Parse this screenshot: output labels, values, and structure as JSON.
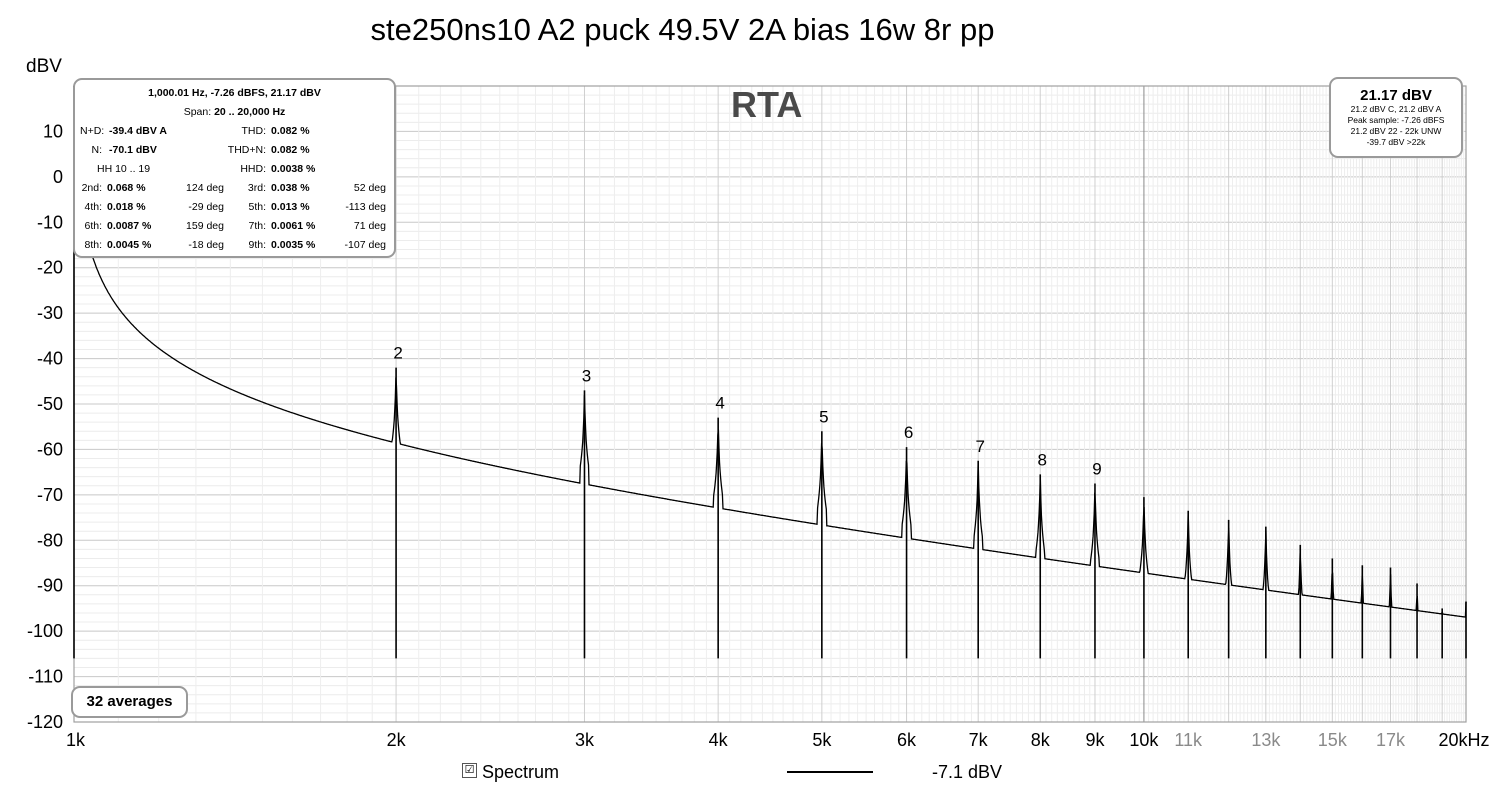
{
  "title": "ste250ns10 A2 puck 49.5V 2A bias 16w 8r pp",
  "rta_label": "RTA",
  "stats": {
    "header1": "1,000.01 Hz, -7.26 dBFS, 21.17 dBV",
    "header2_label": "Span:",
    "header2_value": "20 .. 20,000 Hz",
    "nd_label": "N+D:",
    "nd_value": "-39.4 dBV A",
    "thd_label": "THD:",
    "thd_value": "0.082 %",
    "n_label": "N:",
    "n_value": "-70.1 dBV",
    "thdn_label": "THD+N:",
    "thdn_value": "0.082 %",
    "hh_label": "HH 10 .. 19",
    "hhd_label": "HHD:",
    "hhd_value": "0.0038 %",
    "harmonics": [
      {
        "label": "2nd:",
        "value": "0.068 %",
        "phase": "124 deg"
      },
      {
        "label": "3rd:",
        "value": "0.038 %",
        "phase": "52 deg"
      },
      {
        "label": "4th:",
        "value": "0.018 %",
        "phase": "-29 deg"
      },
      {
        "label": "5th:",
        "value": "0.013 %",
        "phase": "-113 deg"
      },
      {
        "label": "6th:",
        "value": "0.0087 %",
        "phase": "159 deg"
      },
      {
        "label": "7th:",
        "value": "0.0061 %",
        "phase": "71 deg"
      },
      {
        "label": "8th:",
        "value": "0.0045 %",
        "phase": "-18 deg"
      },
      {
        "label": "9th:",
        "value": "0.0035 %",
        "phase": "-107 deg"
      }
    ]
  },
  "level_box": {
    "big": "21.17 dBV",
    "line1": "21.2 dBV C, 21.2 dBV A",
    "line2": "Peak sample: -7.26 dBFS",
    "line3": "21.2 dBV 22 - 22k UNW",
    "line4": "-39.7 dBV >22k"
  },
  "averages": "32 averages",
  "legend": {
    "checked": "☑",
    "label": "Spectrum",
    "level": "-7.1 dBV"
  },
  "chart_data": {
    "type": "line",
    "ylabel": "dBV",
    "xscale": "log",
    "xlim": [
      1000,
      20000
    ],
    "ylim": [
      -120,
      20
    ],
    "y_ticks": [
      10,
      0,
      -10,
      -20,
      -30,
      -40,
      -50,
      -60,
      -70,
      -80,
      -90,
      -100,
      -110,
      -120
    ],
    "x_ticks": [
      {
        "hz": 1000,
        "label": "1k",
        "strong": true
      },
      {
        "hz": 2000,
        "label": "2k",
        "strong": true
      },
      {
        "hz": 3000,
        "label": "3k",
        "strong": true
      },
      {
        "hz": 4000,
        "label": "4k",
        "strong": true
      },
      {
        "hz": 5000,
        "label": "5k",
        "strong": true
      },
      {
        "hz": 6000,
        "label": "6k",
        "strong": true
      },
      {
        "hz": 7000,
        "label": "7k",
        "strong": true
      },
      {
        "hz": 8000,
        "label": "8k",
        "strong": true
      },
      {
        "hz": 9000,
        "label": "9k",
        "strong": true
      },
      {
        "hz": 10000,
        "label": "10k",
        "strong": true
      },
      {
        "hz": 11000,
        "label": "11k",
        "strong": false
      },
      {
        "hz": 13000,
        "label": "13k",
        "strong": false
      },
      {
        "hz": 15000,
        "label": "15k",
        "strong": false
      },
      {
        "hz": 17000,
        "label": "17k",
        "strong": false
      },
      {
        "hz": 20000,
        "label": "20kHz",
        "strong": true
      }
    ],
    "noise_floor_dbv": -108,
    "fundamental": {
      "hz": 1000,
      "dbv": 21.17
    },
    "harmonics": [
      {
        "n": "2",
        "hz": 2000,
        "dbv": -42
      },
      {
        "n": "3",
        "hz": 3000,
        "dbv": -47
      },
      {
        "n": "4",
        "hz": 4000,
        "dbv": -53
      },
      {
        "n": "5",
        "hz": 5000,
        "dbv": -56
      },
      {
        "n": "6",
        "hz": 6000,
        "dbv": -59.5
      },
      {
        "n": "7",
        "hz": 7000,
        "dbv": -62.5
      },
      {
        "n": "8",
        "hz": 8000,
        "dbv": -65.5
      },
      {
        "n": "9",
        "hz": 9000,
        "dbv": -67.5
      },
      {
        "n": "",
        "hz": 10000,
        "dbv": -70.5
      },
      {
        "n": "",
        "hz": 11000,
        "dbv": -73.5
      },
      {
        "n": "",
        "hz": 12000,
        "dbv": -75.5
      },
      {
        "n": "",
        "hz": 13000,
        "dbv": -77
      },
      {
        "n": "",
        "hz": 14000,
        "dbv": -81
      },
      {
        "n": "",
        "hz": 15000,
        "dbv": -84
      },
      {
        "n": "",
        "hz": 16000,
        "dbv": -85.5
      },
      {
        "n": "",
        "hz": 17000,
        "dbv": -86
      },
      {
        "n": "",
        "hz": 18000,
        "dbv": -89.5
      },
      {
        "n": "",
        "hz": 19000,
        "dbv": -95
      },
      {
        "n": "",
        "hz": 20000,
        "dbv": -93.5
      }
    ]
  }
}
